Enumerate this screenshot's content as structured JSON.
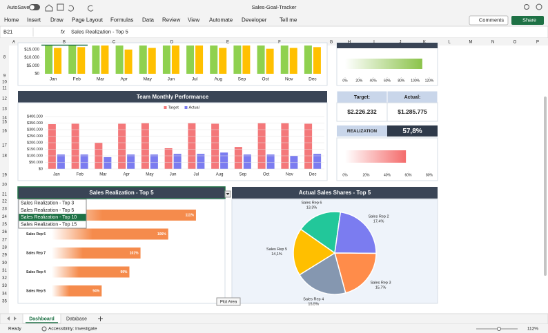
{
  "window": {
    "autosave": "AutoSave",
    "title": "Sales-Goal-Tracker"
  },
  "ribbon": {
    "tabs": [
      "Home",
      "Insert",
      "Draw",
      "Page Layout",
      "Formulas",
      "Data",
      "Review",
      "View",
      "Automate",
      "Developer",
      "Tell me"
    ],
    "comments": "Comments",
    "share": "Share"
  },
  "formula_bar": {
    "name_box": "B21",
    "fx": "fx",
    "content": "Sales Realization - Top 5"
  },
  "columns": [
    "A",
    "B",
    "C",
    "D",
    "E",
    "F",
    "G",
    "H",
    "I",
    "J",
    "K",
    "L",
    "M",
    "N",
    "O",
    "P"
  ],
  "rows": [
    8,
    9,
    10,
    11,
    12,
    13,
    14,
    15,
    16,
    17,
    18,
    19,
    20,
    21,
    22,
    23,
    24,
    25,
    26,
    27,
    28,
    29,
    30,
    31,
    32,
    33,
    34,
    35
  ],
  "charts": [
    {
      "type": "bar",
      "categories": [
        "Jan",
        "Feb",
        "Mar",
        "Apr",
        "May",
        "Jun",
        "Jul",
        "Aug",
        "Sep",
        "Oct",
        "Nov",
        "Dec"
      ],
      "series": [
        {
          "color": "#8fd14f",
          "values": [
            17500,
            17500,
            17500,
            17500,
            17500,
            17500,
            17500,
            17500,
            17500,
            17500,
            17500,
            17500
          ]
        },
        {
          "color": "#ffc000",
          "values": [
            16000,
            16500,
            17500,
            15000,
            16000,
            17500,
            17500,
            16000,
            17500,
            15500,
            16000,
            16500
          ]
        }
      ],
      "ylim": [
        0,
        17500
      ],
      "yticks": [
        {
          "value": 0,
          "label": "$0"
        },
        {
          "value": 5000,
          "label": "$5.000"
        },
        {
          "value": 10000,
          "label": "$10.000"
        },
        {
          "value": 15000,
          "label": "$15.000"
        }
      ]
    },
    {
      "type": "bar",
      "title": "Team Monthly Performance",
      "legend": "top",
      "grid": true,
      "categories": [
        "Jan",
        "Feb",
        "Mar",
        "Apr",
        "May",
        "Jun",
        "Jul",
        "Aug",
        "Sep",
        "Oct",
        "Nov",
        "Dec"
      ],
      "series": [
        {
          "name": "Target",
          "color": "#f4787a",
          "values": [
            342000,
            345000,
            200000,
            345000,
            350000,
            158000,
            350000,
            345000,
            168000,
            350000,
            350000,
            345000
          ]
        },
        {
          "name": "Actual",
          "color": "#7b7cf0",
          "values": [
            110000,
            110000,
            90000,
            110000,
            110000,
            115000,
            115000,
            125000,
            110000,
            110000,
            100000,
            115000
          ]
        }
      ],
      "ylim": [
        0,
        400000
      ],
      "yticks": [
        {
          "value": 0,
          "label": "$0"
        },
        {
          "value": 50000,
          "label": "$50.000"
        },
        {
          "value": 100000,
          "label": "$100.000"
        },
        {
          "value": 150000,
          "label": "$150.000"
        },
        {
          "value": 200000,
          "label": "$200.000"
        },
        {
          "value": 250000,
          "label": "$250.000"
        },
        {
          "value": 300000,
          "label": "$300.000"
        },
        {
          "value": 350000,
          "label": "$350.000"
        },
        {
          "value": 400000,
          "label": "$400.000"
        }
      ]
    },
    {
      "type": "progress",
      "values": [
        110
      ],
      "color": "#8bc34a",
      "xlim": [
        0,
        120
      ],
      "xticks": [
        {
          "value": 0,
          "label": "0%"
        },
        {
          "value": 20,
          "label": "20%"
        },
        {
          "value": 40,
          "label": "40%"
        },
        {
          "value": 60,
          "label": "60%"
        },
        {
          "value": 80,
          "label": "80%"
        },
        {
          "value": 100,
          "label": "100%"
        },
        {
          "value": 120,
          "label": "120%"
        }
      ]
    },
    {
      "type": "kpi",
      "target_label": "Target:",
      "actual_label": "Actual:",
      "target_value": "$2.226.232",
      "actual_value": "$1.285.775",
      "realization_label": "REALIZATION",
      "realization_value": "57,8%"
    },
    {
      "type": "progress",
      "values": [
        57.8
      ],
      "color": "#f46b6b",
      "xlim": [
        0,
        80
      ],
      "xticks": [
        {
          "value": 0,
          "label": "0%"
        },
        {
          "value": 20,
          "label": "20%"
        },
        {
          "value": 40,
          "label": "40%"
        },
        {
          "value": 60,
          "label": "60%"
        },
        {
          "value": 80,
          "label": "80%"
        }
      ]
    },
    {
      "type": "hbar",
      "title": "Sales Realization - Top 5",
      "color": "#f58b4c",
      "categories": [
        null,
        "Sales Rep 6",
        "Sales Rep 7",
        "Sales Rep 4",
        "Sales Rep 5"
      ],
      "values": [
        111,
        106,
        101,
        99,
        94
      ],
      "value_labels": [
        "111%",
        "106%",
        "101%",
        "99%",
        "94%"
      ],
      "xlim": [
        85,
        113
      ]
    },
    {
      "type": "pie",
      "title": "Actual Sales Shares - Top 5",
      "categories": [
        "Sales Rep 6",
        "Sales Rep 2",
        "Sales Rep 3",
        "Sales Rep 4",
        "Sales Rep 5"
      ],
      "values": [
        13.3,
        17.4,
        15.7,
        15.5,
        14.1
      ],
      "value_labels": [
        "13,3%",
        "17,4%",
        "15,7%",
        "15,5%",
        "14,1%"
      ],
      "colors": [
        "#22c79a",
        "#7b7cf0",
        "#ff8c4a",
        "#8597b0",
        "#ffbf00"
      ]
    }
  ],
  "dropdown": {
    "options": [
      "Sales Realization - Top 3",
      "Sales Realization - Top 5",
      "Sales Realization - Top 10",
      "Sales Realization - Top 15"
    ],
    "selected": 2
  },
  "tooltip": "Plot Area",
  "sheet_tabs": [
    "Dashboard",
    "Database"
  ],
  "status": {
    "ready": "Ready",
    "accessibility": "Accessibility: Investigate",
    "zoom": "112%"
  }
}
